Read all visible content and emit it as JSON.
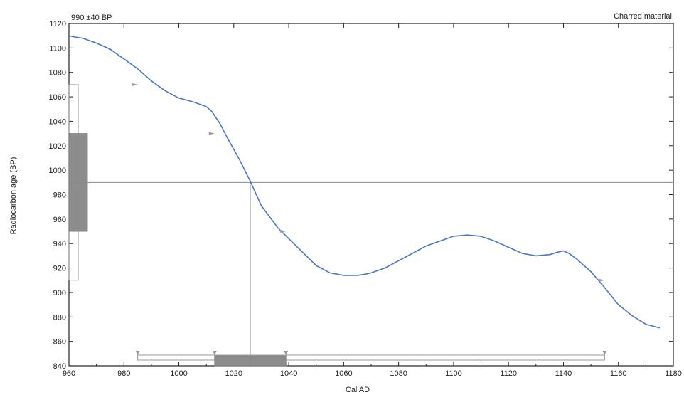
{
  "chart_data": {
    "type": "line",
    "header_left": "990 ±40 BP",
    "header_right": "Charred material",
    "xlabel": "Cal AD",
    "ylabel": "Radiocarbon age (BP)",
    "xlim": [
      960,
      1180
    ],
    "ylim": [
      840,
      1120
    ],
    "x_ticks": [
      960,
      980,
      1000,
      1020,
      1040,
      1060,
      1080,
      1100,
      1120,
      1140,
      1160,
      1180
    ],
    "x_tick_labels": [
      "960",
      "980",
      "1000",
      "1020",
      "1040",
      "1060",
      "1080",
      "1100",
      "1120",
      "1140",
      "1160",
      "1180"
    ],
    "y_ticks": [
      840,
      860,
      880,
      900,
      920,
      940,
      960,
      980,
      1000,
      1020,
      1040,
      1060,
      1080,
      1100,
      1120
    ],
    "y_tick_labels": [
      "840",
      "860",
      "880",
      "900",
      "920",
      "940",
      "960",
      "980",
      "1000",
      "1020",
      "1040",
      "1060",
      "1080",
      "1100",
      "1120"
    ],
    "calibration_curve": {
      "x": [
        960,
        962,
        965,
        970,
        975,
        980,
        985,
        990,
        995,
        1000,
        1005,
        1010,
        1012,
        1015,
        1018,
        1020,
        1022,
        1024,
        1026,
        1028,
        1030,
        1033,
        1036,
        1040,
        1045,
        1050,
        1055,
        1060,
        1065,
        1068,
        1070,
        1075,
        1080,
        1085,
        1090,
        1095,
        1100,
        1105,
        1110,
        1115,
        1120,
        1125,
        1130,
        1135,
        1138,
        1140,
        1142,
        1145,
        1150,
        1155,
        1160,
        1165,
        1170,
        1175
      ],
      "y": [
        1110,
        1109,
        1108,
        1104,
        1099,
        1091,
        1083,
        1073,
        1065,
        1059,
        1056,
        1052,
        1048,
        1038,
        1025,
        1017,
        1009,
        1000,
        991,
        981,
        971,
        962,
        953,
        944,
        933,
        922,
        916,
        914,
        914,
        915,
        916,
        920,
        926,
        932,
        938,
        942,
        946,
        947,
        946,
        942,
        937,
        932,
        930,
        931,
        933,
        934,
        932,
        927,
        917,
        904,
        890,
        881,
        874,
        871
      ]
    },
    "measurement": {
      "mean": 990,
      "sd": 40
    },
    "measurement_1sigma": [
      950,
      1030
    ],
    "measurement_2sigma": [
      910,
      1070
    ],
    "calibrated_median": 1026,
    "calibrated_1sigma": [
      1013,
      1039
    ],
    "calibrated_2sigma": [
      985,
      1155
    ],
    "markers": [
      {
        "x": 985,
        "y": 1070
      },
      {
        "x": 1013,
        "y": 1030
      },
      {
        "x": 1039,
        "y": 950
      },
      {
        "x": 1155,
        "y": 910
      }
    ],
    "colors": {
      "curve": "#4a76c2",
      "sigma_box": "#8c8c8c",
      "guide_line": "#888888",
      "axis": "#222222",
      "marker": "#9a9a9a"
    },
    "grid": false
  }
}
